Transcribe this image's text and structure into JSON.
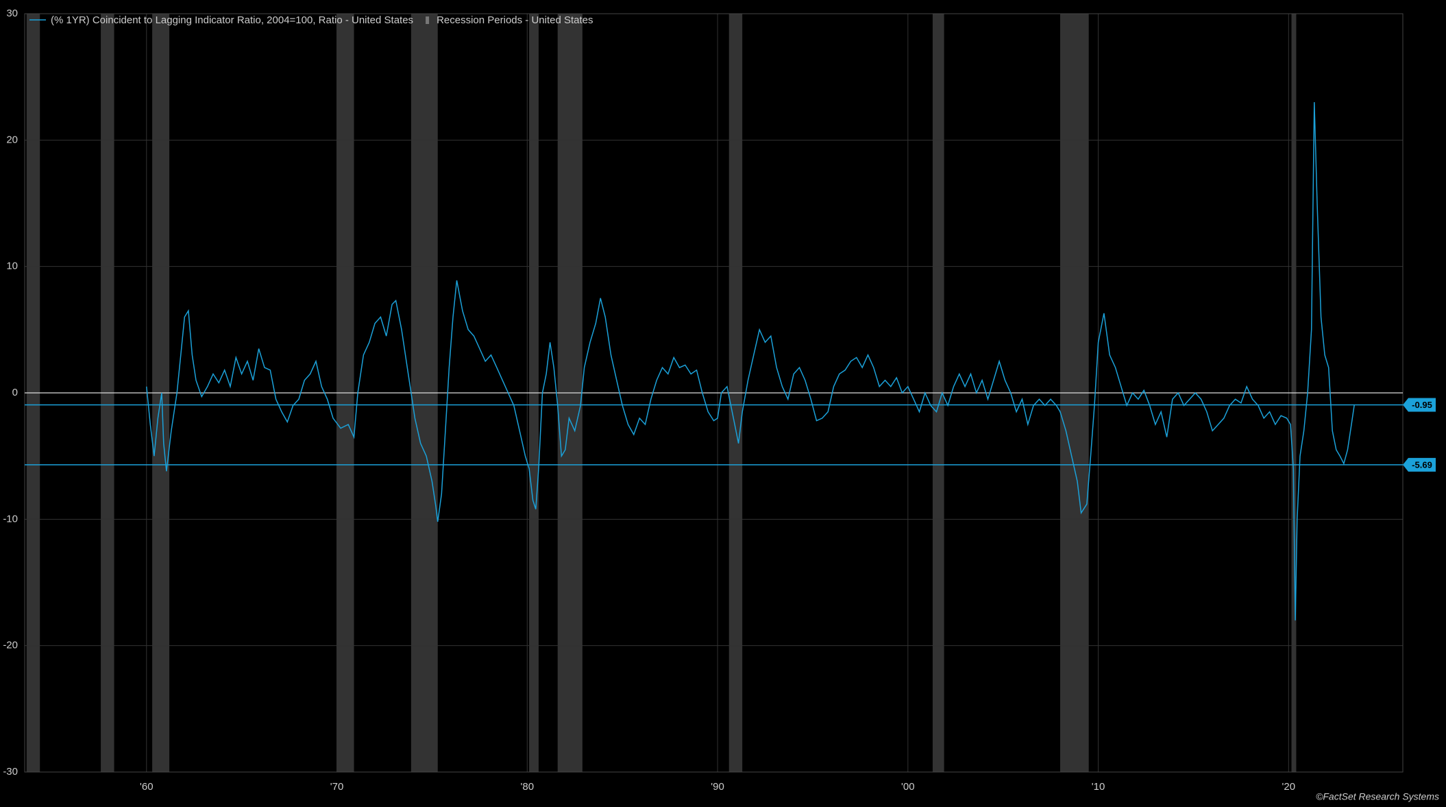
{
  "chart_data": {
    "type": "line",
    "legend_corner": "top-left",
    "grid": true,
    "x": [
      1960.0,
      1960.2,
      1960.4,
      1960.6,
      1960.8,
      1960.9,
      1961.05,
      1961.3,
      1961.6,
      1961.8,
      1962.0,
      1962.2,
      1962.4,
      1962.6,
      1962.9,
      1963.2,
      1963.5,
      1963.8,
      1964.1,
      1964.4,
      1964.7,
      1965.0,
      1965.3,
      1965.6,
      1965.9,
      1966.2,
      1966.5,
      1966.8,
      1967.1,
      1967.4,
      1967.7,
      1968.0,
      1968.3,
      1968.6,
      1968.9,
      1969.2,
      1969.5,
      1969.8,
      1970.2,
      1970.6,
      1970.9,
      1971.1,
      1971.4,
      1971.7,
      1972.0,
      1972.3,
      1972.6,
      1972.9,
      1973.1,
      1973.4,
      1973.7,
      1973.9,
      1974.1,
      1974.4,
      1974.7,
      1975.0,
      1975.2,
      1975.3,
      1975.5,
      1975.7,
      1975.9,
      1976.1,
      1976.3,
      1976.6,
      1976.9,
      1977.2,
      1977.5,
      1977.8,
      1978.1,
      1978.4,
      1978.7,
      1979.0,
      1979.3,
      1979.6,
      1979.9,
      1980.1,
      1980.3,
      1980.45,
      1980.6,
      1980.8,
      1981.0,
      1981.2,
      1981.4,
      1981.6,
      1981.8,
      1982.0,
      1982.2,
      1982.5,
      1982.8,
      1983.0,
      1983.3,
      1983.6,
      1983.85,
      1984.1,
      1984.4,
      1984.7,
      1985.0,
      1985.3,
      1985.6,
      1985.9,
      1986.2,
      1986.5,
      1986.8,
      1987.1,
      1987.4,
      1987.7,
      1988.0,
      1988.3,
      1988.6,
      1988.9,
      1989.2,
      1989.5,
      1989.8,
      1990.0,
      1990.2,
      1990.5,
      1990.7,
      1990.9,
      1991.1,
      1991.3,
      1991.6,
      1991.9,
      1992.2,
      1992.5,
      1992.8,
      1993.1,
      1993.4,
      1993.7,
      1994.0,
      1994.3,
      1994.6,
      1994.9,
      1995.2,
      1995.5,
      1995.8,
      1996.1,
      1996.4,
      1996.7,
      1997.0,
      1997.3,
      1997.6,
      1997.9,
      1998.2,
      1998.5,
      1998.8,
      1999.1,
      1999.4,
      1999.7,
      2000.0,
      2000.3,
      2000.6,
      2000.9,
      2001.2,
      2001.5,
      2001.8,
      2002.1,
      2002.4,
      2002.7,
      2003.0,
      2003.3,
      2003.6,
      2003.9,
      2004.2,
      2004.5,
      2004.8,
      2005.1,
      2005.4,
      2005.7,
      2006.0,
      2006.3,
      2006.6,
      2006.9,
      2007.2,
      2007.5,
      2007.8,
      2008.0,
      2008.3,
      2008.6,
      2008.9,
      2009.1,
      2009.4,
      2009.6,
      2009.8,
      2010.0,
      2010.3,
      2010.6,
      2010.9,
      2011.2,
      2011.5,
      2011.8,
      2012.1,
      2012.4,
      2012.7,
      2013.0,
      2013.3,
      2013.6,
      2013.9,
      2014.2,
      2014.5,
      2014.8,
      2015.1,
      2015.4,
      2015.7,
      2016.0,
      2016.3,
      2016.6,
      2016.9,
      2017.2,
      2017.5,
      2017.8,
      2018.1,
      2018.4,
      2018.7,
      2019.0,
      2019.3,
      2019.6,
      2019.9,
      2020.1,
      2020.25,
      2020.35,
      2020.45,
      2020.6,
      2020.8,
      2021.0,
      2021.2,
      2021.35,
      2021.5,
      2021.7,
      2021.9,
      2022.1,
      2022.3,
      2022.5,
      2022.7,
      2022.9,
      2023.1,
      2023.3,
      2023.45
    ],
    "series": [
      {
        "name": "(% 1YR) Coincident to Lagging Indicator Ratio, 2004=100, Ratio - United States",
        "color": "#1ba1d9",
        "values": [
          0.5,
          -2.5,
          -5,
          -2,
          0,
          -4,
          -6.2,
          -3,
          0,
          3,
          6,
          6.5,
          3,
          1,
          -0.3,
          0.5,
          1.5,
          0.8,
          1.8,
          0.5,
          2.8,
          1.5,
          2.5,
          1.0,
          3.5,
          2.0,
          1.8,
          -0.5,
          -1.5,
          -2.3,
          -1.0,
          -0.5,
          1.0,
          1.5,
          2.5,
          0.5,
          -0.5,
          -2.0,
          -2.8,
          -2.5,
          -3.5,
          0,
          3,
          4,
          5.5,
          6,
          4.5,
          7,
          7.3,
          5,
          2,
          0,
          -2,
          -4,
          -5,
          -7,
          -9,
          -10.2,
          -8,
          -3,
          2,
          6,
          8.9,
          6.5,
          5,
          4.5,
          3.5,
          2.5,
          3,
          2,
          1,
          0,
          -1,
          -3,
          -5,
          -6,
          -8.5,
          -9.2,
          -6,
          0,
          1.5,
          4,
          2,
          -1,
          -5,
          -4.5,
          -2,
          -3,
          -1,
          2,
          4,
          5.5,
          7.5,
          6,
          3,
          1,
          -1,
          -2.5,
          -3.3,
          -2,
          -2.5,
          -0.5,
          1,
          2,
          1.5,
          2.8,
          2,
          2.2,
          1.5,
          1.8,
          0,
          -1.5,
          -2.2,
          -2.0,
          0,
          0.5,
          -1,
          -2.5,
          -4,
          -1.5,
          1,
          3,
          5,
          4,
          4.5,
          2,
          0.5,
          -0.5,
          1.5,
          2,
          1,
          -0.5,
          -2.2,
          -2,
          -1.5,
          0.5,
          1.5,
          1.8,
          2.5,
          2.8,
          2.0,
          3,
          2,
          0.5,
          1,
          0.5,
          1.2,
          0,
          0.5,
          -0.5,
          -1.5,
          0,
          -1.0,
          -1.5,
          0,
          -1,
          0.5,
          1.5,
          0.5,
          1.5,
          0,
          1,
          -0.5,
          1.0,
          2.5,
          1,
          0,
          -1.5,
          -0.5,
          -2.5,
          -1.0,
          -0.5,
          -1,
          -0.5,
          -1.0,
          -1.5,
          -3,
          -5,
          -7,
          -9.5,
          -8.8,
          -5,
          -1,
          4,
          6.3,
          3,
          2,
          0.5,
          -1,
          0,
          -0.5,
          0.2,
          -1,
          -2.5,
          -1.5,
          -3.5,
          -0.5,
          0,
          -1.0,
          -0.5,
          0,
          -0.5,
          -1.5,
          -3,
          -2.5,
          -2,
          -1,
          -0.5,
          -0.8,
          0.5,
          -0.5,
          -1.0,
          -2,
          -1.5,
          -2.5,
          -1.8,
          -2,
          -2.5,
          -6,
          -18,
          -10,
          -5,
          -3,
          0,
          5,
          23,
          15,
          6,
          3,
          2,
          -3,
          -4.5,
          -5.0,
          -5.6,
          -4.5,
          -2.5,
          -0.95
        ]
      }
    ],
    "recession": {
      "name": "Recession Periods - United States",
      "color": "#333333",
      "periods": [
        [
          1953.7,
          1954.4
        ],
        [
          1957.6,
          1958.3
        ],
        [
          1960.3,
          1961.2
        ],
        [
          1970.0,
          1970.9
        ],
        [
          1973.9,
          1975.3
        ],
        [
          1980.1,
          1980.6
        ],
        [
          1981.6,
          1982.9
        ],
        [
          1990.6,
          1991.3
        ],
        [
          2001.3,
          2001.9
        ],
        [
          2008.0,
          2009.5
        ],
        [
          2020.15,
          2020.4
        ]
      ]
    },
    "hlines": [
      -0.95,
      -5.69
    ],
    "baseline": 0,
    "xlim": [
      1953.6,
      2026
    ],
    "xticks": [
      {
        "value": 1960,
        "label": "'60"
      },
      {
        "value": 1970,
        "label": "'70"
      },
      {
        "value": 1980,
        "label": "'80"
      },
      {
        "value": 1990,
        "label": "'90"
      },
      {
        "value": 2000,
        "label": "'00"
      },
      {
        "value": 2010,
        "label": "'10"
      },
      {
        "value": 2020,
        "label": "'20"
      }
    ],
    "ylim": [
      -30,
      30
    ],
    "yticks": [
      -30,
      -20,
      -10,
      0,
      10,
      20,
      30
    ],
    "source": "©FactSet Research Systems"
  }
}
